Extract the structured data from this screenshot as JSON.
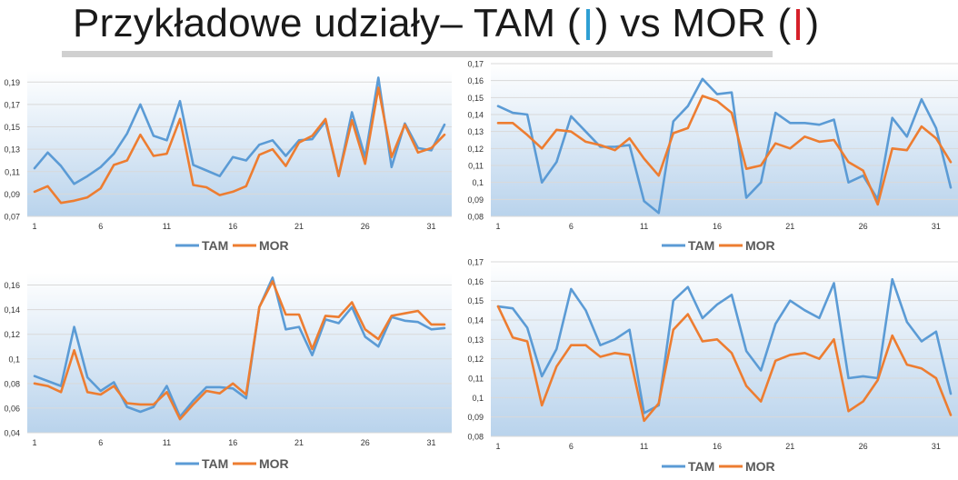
{
  "title": {
    "prefix": "Przykładowe udziały– TAM (",
    "middle": ") vs MOR (",
    "suffix": ")",
    "tam_color": "#2e9fd3",
    "mor_color": "#d6202a"
  },
  "chart_data": [
    {
      "type": "line",
      "x": [
        1,
        2,
        3,
        4,
        5,
        6,
        7,
        8,
        9,
        10,
        11,
        12,
        13,
        14,
        15,
        16,
        17,
        18,
        19,
        20,
        21,
        22,
        23,
        24,
        25,
        26,
        27,
        28,
        29,
        30,
        31,
        32
      ],
      "xticks": [
        "1",
        "6",
        "11",
        "16",
        "21",
        "26",
        "31"
      ],
      "ylim": [
        0.07,
        0.2
      ],
      "yticks": [
        "0,07",
        "0,09",
        "0,11",
        "0,13",
        "0,15",
        "0,17",
        "0,19"
      ],
      "series": [
        {
          "name": "TAM",
          "color": "#5b9bd5",
          "values": [
            0.113,
            0.127,
            0.115,
            0.099,
            0.106,
            0.114,
            0.126,
            0.144,
            0.17,
            0.142,
            0.138,
            0.173,
            0.116,
            0.111,
            0.106,
            0.123,
            0.12,
            0.134,
            0.138,
            0.124,
            0.138,
            0.139,
            0.155,
            0.106,
            0.163,
            0.123,
            0.194,
            0.114,
            0.153,
            0.131,
            0.129,
            0.152
          ]
        },
        {
          "name": "MOR",
          "color": "#ed7d31",
          "values": [
            0.092,
            0.097,
            0.082,
            0.084,
            0.087,
            0.095,
            0.116,
            0.12,
            0.143,
            0.124,
            0.126,
            0.157,
            0.098,
            0.096,
            0.089,
            0.092,
            0.097,
            0.125,
            0.13,
            0.115,
            0.136,
            0.142,
            0.157,
            0.106,
            0.156,
            0.117,
            0.185,
            0.123,
            0.152,
            0.127,
            0.131,
            0.143
          ]
        }
      ],
      "legend": [
        "TAM",
        "MOR"
      ],
      "legend_position": "bottom"
    },
    {
      "type": "line",
      "x": [
        1,
        2,
        3,
        4,
        5,
        6,
        7,
        8,
        9,
        10,
        11,
        12,
        13,
        14,
        15,
        16,
        17,
        18,
        19,
        20,
        21,
        22,
        23,
        24,
        25,
        26,
        27,
        28,
        29,
        30,
        31,
        32
      ],
      "xticks": [
        "1",
        "6",
        "11",
        "16",
        "21",
        "26",
        "31"
      ],
      "ylim": [
        0.08,
        0.17
      ],
      "yticks": [
        "0,08",
        "0,09",
        "0,1",
        "0,11",
        "0,12",
        "0,13",
        "0,14",
        "0,15",
        "0,16",
        "0,17"
      ],
      "series": [
        {
          "name": "TAM",
          "color": "#5b9bd5",
          "values": [
            0.145,
            0.141,
            0.14,
            0.1,
            0.112,
            0.139,
            0.13,
            0.121,
            0.121,
            0.122,
            0.089,
            0.082,
            0.136,
            0.145,
            0.161,
            0.152,
            0.153,
            0.091,
            0.1,
            0.141,
            0.135,
            0.135,
            0.134,
            0.137,
            0.1,
            0.104,
            0.09,
            0.138,
            0.127,
            0.149,
            0.132,
            0.097
          ]
        },
        {
          "name": "MOR",
          "color": "#ed7d31",
          "values": [
            0.135,
            0.135,
            0.128,
            0.12,
            0.131,
            0.13,
            0.124,
            0.122,
            0.119,
            0.126,
            0.114,
            0.104,
            0.129,
            0.132,
            0.151,
            0.148,
            0.141,
            0.108,
            0.11,
            0.123,
            0.12,
            0.127,
            0.124,
            0.125,
            0.112,
            0.107,
            0.087,
            0.12,
            0.119,
            0.133,
            0.126,
            0.112
          ]
        }
      ],
      "legend": [
        "TAM",
        "MOR"
      ],
      "legend_position": "bottom"
    },
    {
      "type": "line",
      "x": [
        1,
        2,
        3,
        4,
        5,
        6,
        7,
        8,
        9,
        10,
        11,
        12,
        13,
        14,
        15,
        16,
        17,
        18,
        19,
        20,
        21,
        22,
        23,
        24,
        25,
        26,
        27,
        28,
        29,
        30,
        31,
        32
      ],
      "xticks": [
        "1",
        "6",
        "11",
        "16",
        "21",
        "26",
        "31"
      ],
      "ylim": [
        0.04,
        0.17
      ],
      "yticks": [
        "0,04",
        "0,06",
        "0,08",
        "0,1",
        "0,12",
        "0,14",
        "0,16"
      ],
      "series": [
        {
          "name": "TAM",
          "color": "#5b9bd5",
          "values": [
            0.086,
            0.082,
            0.078,
            0.126,
            0.085,
            0.074,
            0.081,
            0.061,
            0.057,
            0.061,
            0.078,
            0.053,
            0.066,
            0.077,
            0.077,
            0.076,
            0.068,
            0.142,
            0.166,
            0.124,
            0.126,
            0.103,
            0.132,
            0.129,
            0.142,
            0.118,
            0.11,
            0.134,
            0.131,
            0.13,
            0.124,
            0.125
          ]
        },
        {
          "name": "MOR",
          "color": "#ed7d31",
          "values": [
            0.08,
            0.078,
            0.073,
            0.107,
            0.073,
            0.071,
            0.078,
            0.064,
            0.063,
            0.063,
            0.073,
            0.051,
            0.063,
            0.074,
            0.072,
            0.08,
            0.071,
            0.142,
            0.163,
            0.136,
            0.136,
            0.108,
            0.135,
            0.134,
            0.146,
            0.124,
            0.116,
            0.135,
            0.137,
            0.139,
            0.128,
            0.128
          ]
        }
      ],
      "legend": [
        "TAM",
        "MOR"
      ],
      "legend_position": "bottom"
    },
    {
      "type": "line",
      "x": [
        1,
        2,
        3,
        4,
        5,
        6,
        7,
        8,
        9,
        10,
        11,
        12,
        13,
        14,
        15,
        16,
        17,
        18,
        19,
        20,
        21,
        22,
        23,
        24,
        25,
        26,
        27,
        28,
        29,
        30,
        31,
        32
      ],
      "xticks": [
        "1",
        "6",
        "11",
        "16",
        "21",
        "26",
        "31"
      ],
      "ylim": [
        0.08,
        0.17
      ],
      "yticks": [
        "0,08",
        "0,09",
        "0,1",
        "0,11",
        "0,12",
        "0,13",
        "0,14",
        "0,15",
        "0,16",
        "0,17"
      ],
      "series": [
        {
          "name": "TAM",
          "color": "#5b9bd5",
          "values": [
            0.147,
            0.146,
            0.136,
            0.111,
            0.125,
            0.156,
            0.145,
            0.127,
            0.13,
            0.135,
            0.092,
            0.096,
            0.15,
            0.157,
            0.141,
            0.148,
            0.153,
            0.124,
            0.114,
            0.138,
            0.15,
            0.145,
            0.141,
            0.159,
            0.11,
            0.111,
            0.11,
            0.161,
            0.139,
            0.129,
            0.134,
            0.102
          ]
        },
        {
          "name": "MOR",
          "color": "#ed7d31",
          "values": [
            0.147,
            0.131,
            0.129,
            0.096,
            0.116,
            0.127,
            0.127,
            0.121,
            0.123,
            0.122,
            0.088,
            0.097,
            0.135,
            0.143,
            0.129,
            0.13,
            0.123,
            0.106,
            0.098,
            0.119,
            0.122,
            0.123,
            0.12,
            0.13,
            0.093,
            0.098,
            0.109,
            0.132,
            0.117,
            0.115,
            0.11,
            0.091
          ]
        }
      ],
      "legend": [
        "TAM",
        "MOR"
      ],
      "legend_position": "bottom"
    }
  ]
}
